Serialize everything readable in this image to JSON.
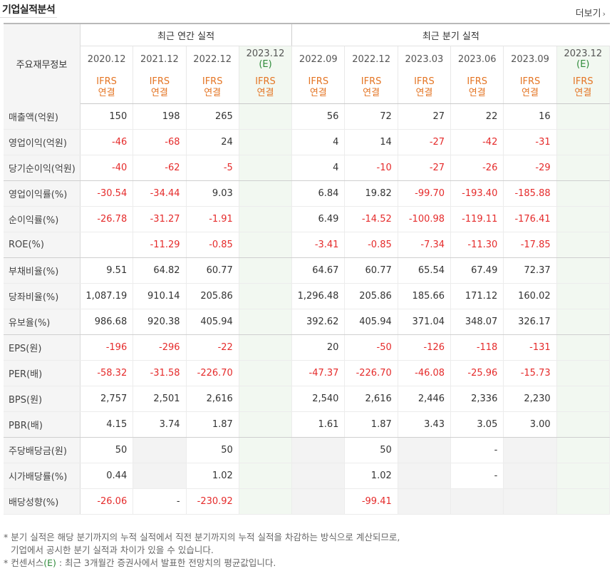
{
  "header": {
    "title": "기업실적분석",
    "more_label": "더보기"
  },
  "table": {
    "label_header": "주요재무정보",
    "group_annual": "최근 연간 실적",
    "group_quarterly": "최근 분기 실적",
    "periods": [
      "2020.12",
      "2021.12",
      "2022.12",
      "2023.12",
      "2022.09",
      "2022.12",
      "2023.03",
      "2023.06",
      "2023.09",
      "2023.12"
    ],
    "estimate_mark": "(E)",
    "ifrs_line1": "IFRS",
    "ifrs_line2": "연결",
    "rows": [
      {
        "label": "매출액(억원)",
        "values": [
          "150",
          "198",
          "265",
          "",
          "56",
          "72",
          "27",
          "22",
          "16",
          ""
        ]
      },
      {
        "label": "영업이익(억원)",
        "values": [
          "-46",
          "-68",
          "24",
          "",
          "4",
          "14",
          "-27",
          "-42",
          "-31",
          ""
        ]
      },
      {
        "label": "당기순이익(억원)",
        "values": [
          "-40",
          "-62",
          "-5",
          "",
          "4",
          "-10",
          "-27",
          "-26",
          "-29",
          ""
        ]
      },
      {
        "label": "영업이익률(%)",
        "values": [
          "-30.54",
          "-34.44",
          "9.03",
          "",
          "6.84",
          "19.82",
          "-99.70",
          "-193.40",
          "-185.88",
          ""
        ]
      },
      {
        "label": "순이익률(%)",
        "values": [
          "-26.78",
          "-31.27",
          "-1.91",
          "",
          "6.49",
          "-14.52",
          "-100.98",
          "-119.11",
          "-176.41",
          ""
        ]
      },
      {
        "label": "ROE(%)",
        "values": [
          "",
          "-11.29",
          "-0.85",
          "",
          "-3.41",
          "-0.85",
          "-7.34",
          "-11.30",
          "-17.85",
          ""
        ]
      },
      {
        "label": "부채비율(%)",
        "values": [
          "9.51",
          "64.82",
          "60.77",
          "",
          "64.67",
          "60.77",
          "65.54",
          "67.49",
          "72.37",
          ""
        ]
      },
      {
        "label": "당좌비율(%)",
        "values": [
          "1,087.19",
          "910.14",
          "205.86",
          "",
          "1,296.48",
          "205.86",
          "185.66",
          "171.12",
          "160.02",
          ""
        ]
      },
      {
        "label": "유보율(%)",
        "values": [
          "986.68",
          "920.38",
          "405.94",
          "",
          "392.62",
          "405.94",
          "371.04",
          "348.07",
          "326.17",
          ""
        ]
      },
      {
        "label": "EPS(원)",
        "values": [
          "-196",
          "-296",
          "-22",
          "",
          "20",
          "-50",
          "-126",
          "-118",
          "-131",
          ""
        ]
      },
      {
        "label": "PER(배)",
        "values": [
          "-58.32",
          "-31.58",
          "-226.70",
          "",
          "-47.37",
          "-226.70",
          "-46.08",
          "-25.96",
          "-15.73",
          ""
        ]
      },
      {
        "label": "BPS(원)",
        "values": [
          "2,757",
          "2,501",
          "2,616",
          "",
          "2,540",
          "2,616",
          "2,446",
          "2,336",
          "2,230",
          ""
        ]
      },
      {
        "label": "PBR(배)",
        "values": [
          "4.15",
          "3.74",
          "1.87",
          "",
          "1.61",
          "1.87",
          "3.43",
          "3.05",
          "3.00",
          ""
        ]
      },
      {
        "label": "주당배당금(원)",
        "values": [
          "50",
          "",
          "50",
          "",
          "",
          "50",
          "",
          "-",
          "",
          ""
        ]
      },
      {
        "label": "시가배당률(%)",
        "values": [
          "0.44",
          "",
          "1.02",
          "",
          "",
          "1.02",
          "",
          "-",
          "",
          ""
        ]
      },
      {
        "label": "배당성향(%)",
        "values": [
          "-26.06",
          "-",
          "-230.92",
          "",
          "",
          "-99.41",
          "",
          "",
          "",
          ""
        ]
      }
    ]
  },
  "notes": {
    "line1": "* 분기 실적은 해당 분기까지의 누적 실적에서 직전 분기까지의 누적 실적을 차감하는 방식으로 계산되므로,",
    "line2": "기업에서 공시한 분기 실적과 차이가 있을 수 있습니다.",
    "line3_prefix": "* 컨센서스",
    "line3_mark": "(E)",
    "line3_suffix": " : 최근 3개월간 증권사에서 발표한 전망치의 평균값입니다."
  },
  "colors": {
    "negative": "#e52b2b",
    "ifrs": "#e47524",
    "estimate_bg": "#f2f8f1",
    "label_bg": "#f5f5f5",
    "estimate_mark": "#2e8b3a"
  }
}
